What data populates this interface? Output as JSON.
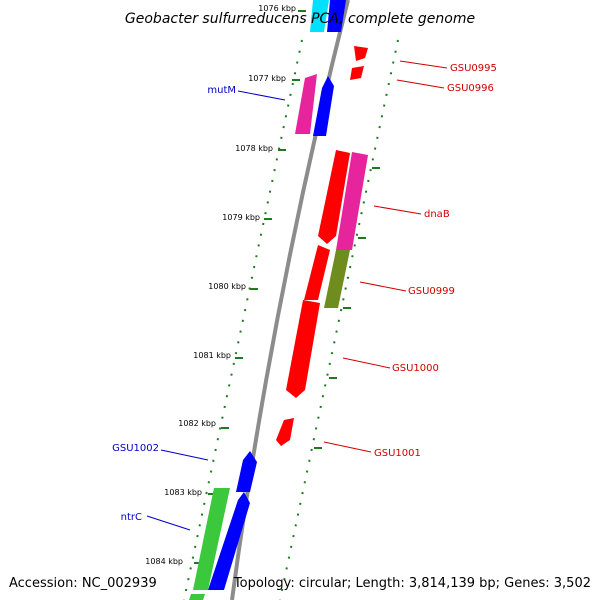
{
  "title": "Geobacter sulfurreducens PCA, complete genome",
  "accession": "Accession: NC_002939",
  "topology": "Topology: circular; Length: 3,814,139 bp; Genes: 3,502",
  "colors": {
    "backbone": "#8c8c8c",
    "dots": "#1e7a1e",
    "forward_label": "#0000c8",
    "reverse_label": "#d00000",
    "blue": "#0000ff",
    "cyan": "#00e0ff",
    "magenta": "#e6249c",
    "red": "#ff0000",
    "olive": "#6f8c1e",
    "green": "#3cc83c"
  },
  "ticks": [
    "1076 kbp",
    "1077 kbp",
    "1078 kbp",
    "1079 kbp",
    "1080 kbp",
    "1081 kbp",
    "1082 kbp",
    "1083 kbp",
    "1084 kbp"
  ],
  "gene_labels": [
    {
      "text": "mutM",
      "strand": "forward"
    },
    {
      "text": "GSU1002",
      "strand": "forward"
    },
    {
      "text": "ntrC",
      "strand": "forward"
    },
    {
      "text": "GSU0995",
      "strand": "reverse"
    },
    {
      "text": "GSU0996",
      "strand": "reverse"
    },
    {
      "text": "dnaB",
      "strand": "reverse"
    },
    {
      "text": "GSU0999",
      "strand": "reverse"
    },
    {
      "text": "GSU1000",
      "strand": "reverse"
    },
    {
      "text": "GSU1001",
      "strand": "reverse"
    }
  ]
}
